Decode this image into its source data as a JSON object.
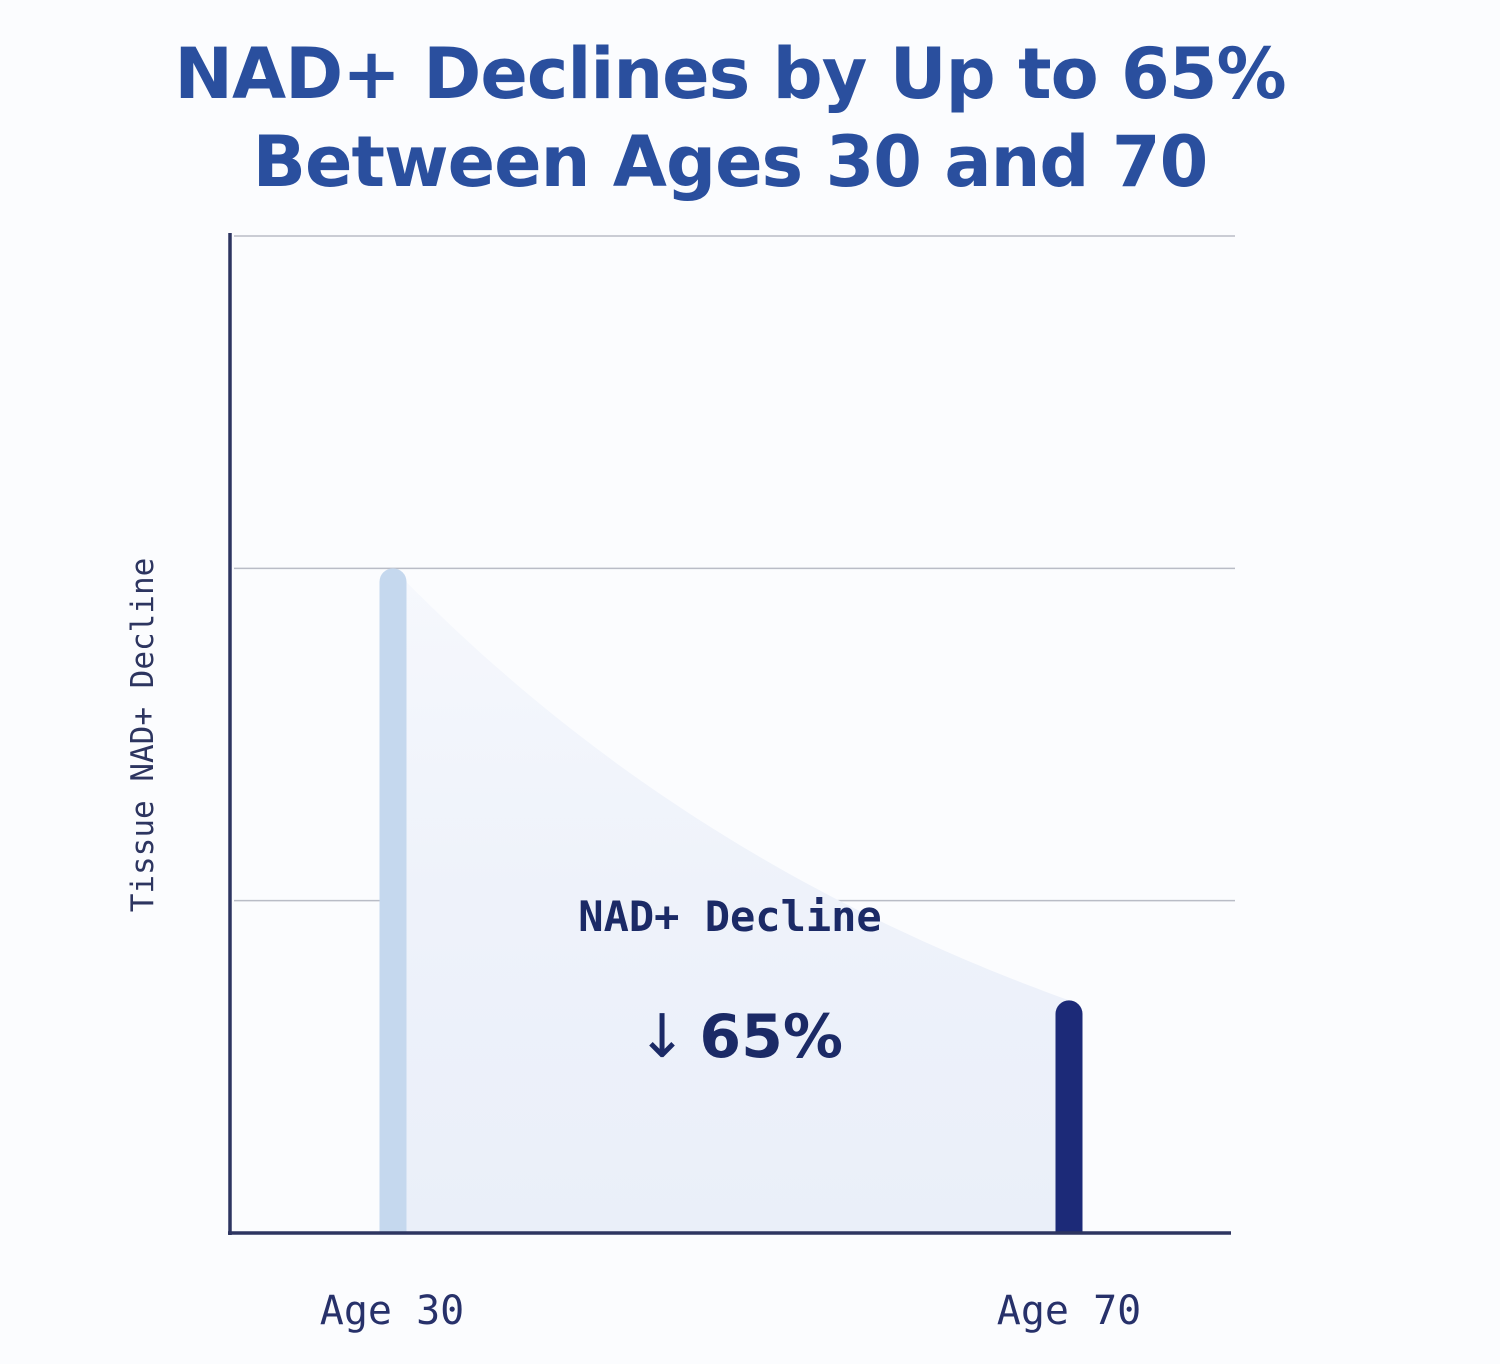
{
  "chart_data": {
    "type": "area",
    "title_lines": [
      "NAD+ Declines by Up to 65%",
      "Between Ages 30 and 70"
    ],
    "xlabel": "",
    "ylabel": "Tissue NAD+ Decline",
    "categories": [
      "Age 30",
      "Age 70"
    ],
    "values": [
      100,
      35
    ],
    "ylim": [
      0,
      150
    ],
    "grid": true,
    "annotation": {
      "label": "NAD+ Decline",
      "value": "65%",
      "arrow": "↓"
    },
    "colors": {
      "title": "#2a4f9e",
      "start_bar": "#c5d8ee",
      "end_bar": "#1c2a78",
      "fill": "#eef2fa",
      "axis": "#2d3560",
      "grid": "#b9bcc6"
    }
  }
}
